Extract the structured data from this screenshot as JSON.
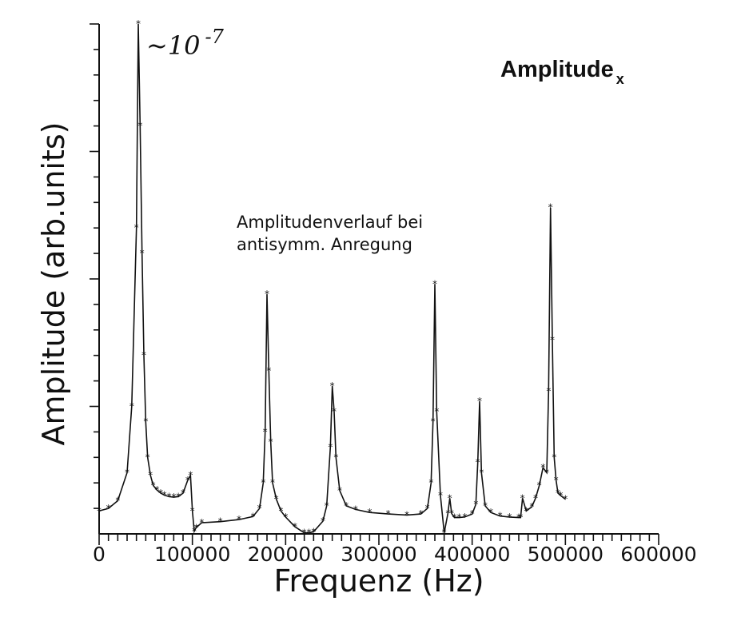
{
  "chart_data": {
    "type": "line",
    "title": "Amplitude",
    "title_subscript": "x",
    "xlabel": "Frequenz (Hz)",
    "ylabel": "Amplitude (arb.units)",
    "xlim": [
      0,
      600000
    ],
    "ylim": [
      0,
      100
    ],
    "x_ticks": [
      "0",
      "100000",
      "200000",
      "300000",
      "400000",
      "500000",
      "600000"
    ],
    "scale_note": "~10",
    "scale_note_exponent": "-7",
    "annotation_line1": "Amplitudenverlauf bei",
    "annotation_line2": "antisymm. Anregung",
    "grid": false,
    "marker": "asterisk",
    "series": [
      {
        "x": [
          0,
          10000,
          20000,
          30000,
          35000,
          40000,
          42000,
          44000,
          46000,
          48000,
          50000,
          52000,
          55000,
          58000,
          62000,
          66000,
          70000,
          75000,
          80000,
          85000,
          90000,
          95000,
          98000,
          100000,
          102000,
          104000,
          110000,
          130000,
          150000,
          165000,
          172000,
          176000,
          178000,
          180000,
          182000,
          184000,
          186000,
          190000,
          195000,
          200000,
          210000,
          220000,
          225000,
          230000,
          240000,
          244000,
          248000,
          250000,
          252000,
          254000,
          258000,
          265000,
          275000,
          290000,
          310000,
          330000,
          345000,
          352000,
          356000,
          358000,
          360000,
          362000,
          366000,
          370000,
          374000,
          376000,
          378000,
          381000,
          386000,
          392000,
          400000,
          404000,
          406000,
          408000,
          410000,
          414000,
          420000,
          430000,
          440000,
          450000,
          452000,
          454000,
          458000,
          464000,
          468000,
          472000,
          476000,
          480000,
          482000,
          484000,
          486000,
          488000,
          490000,
          492000,
          495000,
          500000
        ],
        "y": [
          4.5,
          5.0,
          6.5,
          12,
          25,
          60,
          100,
          80,
          55,
          35,
          22,
          15,
          11.5,
          9.5,
          8.6,
          8.0,
          7.6,
          7.3,
          7.2,
          7.3,
          8.0,
          10.5,
          11.5,
          4.5,
          0.5,
          1.2,
          2.2,
          2.4,
          2.8,
          3.4,
          5.0,
          10,
          20,
          47,
          32,
          18,
          10,
          6.8,
          4.5,
          3.3,
          1.4,
          0.2,
          0.2,
          0.4,
          2.5,
          5.5,
          17,
          29,
          24,
          15,
          8.5,
          5.5,
          4.8,
          4.2,
          3.9,
          3.7,
          3.9,
          5,
          10,
          22,
          49,
          24,
          7.5,
          0.2,
          4,
          7,
          4,
          3.2,
          3.2,
          3.3,
          3.9,
          5.8,
          14,
          26,
          12,
          5.5,
          4.2,
          3.5,
          3.3,
          3.2,
          3.2,
          7,
          4.5,
          5.3,
          7.0,
          9.5,
          13,
          12,
          28,
          64,
          38,
          15,
          10.5,
          8.0,
          7.5,
          6.8
        ]
      }
    ]
  }
}
